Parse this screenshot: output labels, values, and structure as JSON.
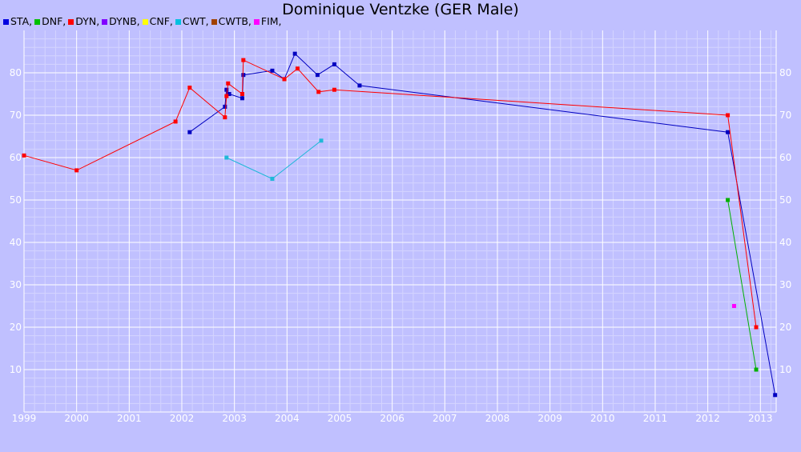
{
  "chart_data": {
    "type": "line",
    "title": "Dominique Ventzke (GER Male)",
    "xlim": [
      1999.0,
      2013.3
    ],
    "ylim": [
      0,
      90
    ],
    "x_ticks": [
      "1999",
      "2000",
      "2001",
      "2002",
      "2003",
      "2004",
      "2005",
      "2006",
      "2007",
      "2008",
      "2009",
      "2010",
      "2011",
      "2012",
      "2013"
    ],
    "y_ticks": [
      "10",
      "20",
      "30",
      "40",
      "50",
      "60",
      "70",
      "80"
    ],
    "grid": true,
    "legend": "top-left",
    "legend_entries": [
      {
        "label": "STA,",
        "color": "#0000e0"
      },
      {
        "label": "DNF,",
        "color": "#00c000"
      },
      {
        "label": "DYN,",
        "color": "#ff0000"
      },
      {
        "label": "DYNB,",
        "color": "#8000ff"
      },
      {
        "label": "CNF,",
        "color": "#ffff00"
      },
      {
        "label": "CWT,",
        "color": "#00c0e0"
      },
      {
        "label": "CWTB,",
        "color": "#a04000"
      },
      {
        "label": "FIM,",
        "color": "#ff00ff"
      }
    ],
    "series": [
      {
        "name": "STA",
        "color": "#0000c0",
        "points": [
          [
            2002.15,
            66
          ],
          [
            2002.82,
            72
          ],
          [
            2002.85,
            76
          ],
          [
            2002.9,
            75
          ],
          [
            2003.15,
            74
          ],
          [
            2003.17,
            79.5
          ],
          [
            2003.72,
            80.5
          ],
          [
            2003.95,
            78.5
          ],
          [
            2004.15,
            84.5
          ],
          [
            2004.58,
            79.5
          ],
          [
            2004.9,
            82
          ],
          [
            2005.38,
            77
          ],
          [
            2012.38,
            66
          ],
          [
            2013.28,
            4
          ]
        ]
      },
      {
        "name": "DNF",
        "color": "#00b000",
        "points": [
          [
            2012.38,
            50
          ],
          [
            2012.92,
            10
          ]
        ]
      },
      {
        "name": "DYN",
        "color": "#ff0000",
        "points": [
          [
            1999.0,
            60.5
          ],
          [
            2000.0,
            57
          ],
          [
            2001.88,
            68.5
          ],
          [
            2002.15,
            76.5
          ],
          [
            2002.82,
            69.5
          ],
          [
            2002.85,
            74.5
          ],
          [
            2002.88,
            77.5
          ],
          [
            2003.15,
            75
          ],
          [
            2003.17,
            83
          ],
          [
            2003.95,
            78.5
          ],
          [
            2004.2,
            81
          ],
          [
            2004.6,
            75.5
          ],
          [
            2004.9,
            76
          ],
          [
            2012.38,
            70
          ],
          [
            2012.92,
            20
          ]
        ]
      },
      {
        "name": "CWT",
        "color": "#20b8d8",
        "points": [
          [
            2002.85,
            60
          ],
          [
            2003.72,
            55
          ],
          [
            2004.65,
            64
          ]
        ]
      },
      {
        "name": "FIM",
        "color": "#ff00ff",
        "points": [
          [
            2012.5,
            25
          ]
        ]
      }
    ]
  }
}
